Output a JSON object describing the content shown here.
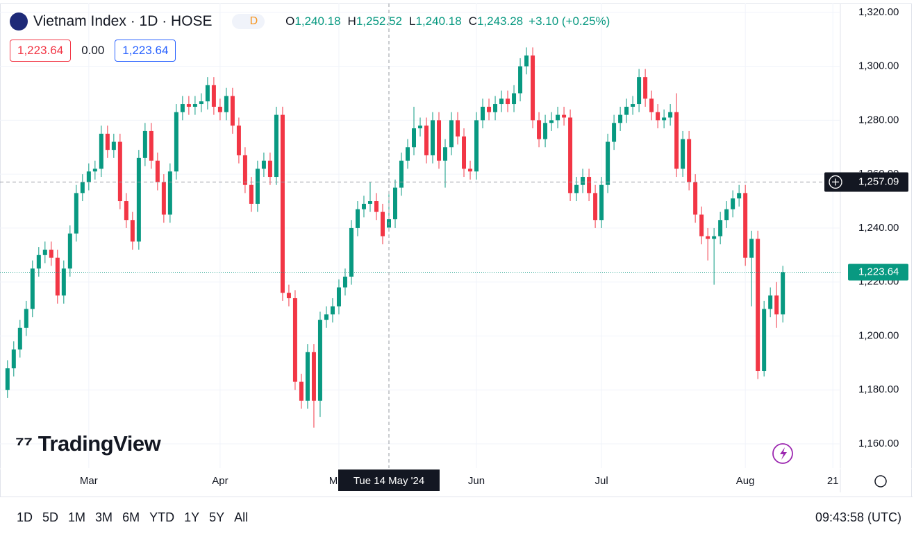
{
  "header": {
    "title": "Vietnam Index · 1D · HOSE",
    "badge": "D",
    "ohlc": [
      {
        "key": "O",
        "value": "1,240.18"
      },
      {
        "key": "H",
        "value": "1,252.52"
      },
      {
        "key": "L",
        "value": "1,240.18"
      },
      {
        "key": "C",
        "value": "1,243.28"
      }
    ],
    "change": "+3.10 (+0.25%)",
    "inputs": [
      "1,223.64",
      "0.00",
      "1,223.64"
    ]
  },
  "watermark": "TradingView",
  "toolbar": {
    "ranges": [
      "1D",
      "5D",
      "1M",
      "3M",
      "6M",
      "YTD",
      "1Y",
      "5Y",
      "All"
    ],
    "clock": "09:43:58 (UTC)"
  },
  "chart_data": {
    "type": "candlestick",
    "up_color": "#089981",
    "down_color": "#f23645",
    "grid": true,
    "ylim": [
      1151,
      1323.3
    ],
    "yticks": [
      {
        "value": 1160,
        "label": "1,160.00"
      },
      {
        "value": 1180,
        "label": "1,180.00"
      },
      {
        "value": 1200,
        "label": "1,200.00"
      },
      {
        "value": 1220,
        "label": "1,220.00"
      },
      {
        "value": 1240,
        "label": "1,240.00"
      },
      {
        "value": 1260,
        "label": "1,260.00"
      },
      {
        "value": 1280,
        "label": "1,280.00"
      },
      {
        "value": 1300,
        "label": "1,300.00"
      },
      {
        "value": 1320,
        "label": "1,320.00"
      }
    ],
    "xlim": [
      -1.2,
      133.2
    ],
    "xticks": [
      {
        "value": 13,
        "label": "Mar"
      },
      {
        "value": 34,
        "label": "Apr"
      },
      {
        "value": 53,
        "label": "May"
      },
      {
        "value": 75,
        "label": "Jun"
      },
      {
        "value": 95,
        "label": "Jul"
      },
      {
        "value": 118,
        "label": "Aug"
      },
      {
        "value": 132,
        "label": "21"
      }
    ],
    "crosshair": {
      "value": 1257.09,
      "label": "1,257.09",
      "date_label": "Tue 14 May '24"
    },
    "last_price_label": "1,223.64",
    "open": [
      1180,
      1188,
      1195,
      1203,
      1210,
      1225,
      1230,
      1232,
      1229,
      1215,
      1225,
      1238,
      1253,
      1257,
      1261,
      1262,
      1275,
      1269,
      1272,
      1250,
      1243,
      1235,
      1266,
      1276,
      1265,
      1257,
      1245,
      1261,
      1283,
      1286,
      1285,
      1286,
      1287,
      1293,
      1285,
      1283,
      1289,
      1278,
      1267,
      1256,
      1249,
      1262,
      1265,
      1259,
      1282,
      1216,
      1214,
      1183,
      1176,
      1194,
      1176,
      1206,
      1208,
      1211,
      1218,
      1222,
      1240,
      1247,
      1249,
      1250,
      1246,
      1240.18,
      1243.28,
      1255,
      1265,
      1270,
      1277,
      1278,
      1267,
      1280,
      1265,
      1270,
      1280,
      1274,
      1262,
      1261,
      1280,
      1285,
      1283,
      1286,
      1288,
      1286,
      1290,
      1300,
      1304,
      1280,
      1273,
      1279,
      1280,
      1282,
      1281,
      1253,
      1256,
      1259,
      1253,
      1243,
      1256,
      1272,
      1279,
      1282,
      1285,
      1286,
      1296,
      1288,
      1283,
      1280,
      1281,
      1283,
      1262,
      1273,
      1257,
      1245,
      1237,
      1236,
      1237,
      1243,
      1247,
      1251,
      1253,
      1229,
      1236,
      1187,
      1210,
      1215,
      1208
    ],
    "high": [
      1191,
      1198,
      1206,
      1213,
      1228,
      1233,
      1235,
      1235,
      1232,
      1228,
      1241,
      1256,
      1260,
      1264,
      1265,
      1278,
      1278,
      1275,
      1275,
      1253,
      1246,
      1269,
      1279,
      1279,
      1268,
      1260,
      1264,
      1286,
      1289,
      1289,
      1289,
      1290,
      1296,
      1296,
      1288,
      1292,
      1292,
      1281,
      1270,
      1259,
      1265,
      1268,
      1268,
      1285,
      1285,
      1219,
      1217,
      1186,
      1197,
      1197,
      1209,
      1211,
      1214,
      1221,
      1225,
      1243,
      1250,
      1252,
      1257,
      1253,
      1249,
      1252.52,
      1258,
      1268,
      1273,
      1285,
      1281,
      1281,
      1283,
      1283,
      1273,
      1283,
      1283,
      1277,
      1265,
      1283,
      1288,
      1288,
      1289,
      1291,
      1291,
      1293,
      1303,
      1307,
      1307,
      1283,
      1282,
      1283,
      1285,
      1285,
      1284,
      1259,
      1262,
      1262,
      1256,
      1259,
      1275,
      1282,
      1285,
      1288,
      1289,
      1299,
      1299,
      1291,
      1286,
      1284,
      1286,
      1290,
      1276,
      1276,
      1260,
      1248,
      1240,
      1240,
      1246,
      1250,
      1254,
      1256,
      1256,
      1239,
      1239,
      1213,
      1218,
      1220,
      1226
    ],
    "low": [
      1177,
      1185,
      1192,
      1200,
      1207,
      1222,
      1227,
      1226,
      1212,
      1212,
      1222,
      1235,
      1250,
      1254,
      1258,
      1259,
      1266,
      1266,
      1247,
      1240,
      1232,
      1232,
      1263,
      1262,
      1254,
      1242,
      1242,
      1258,
      1280,
      1282,
      1282,
      1283,
      1284,
      1282,
      1280,
      1280,
      1275,
      1264,
      1253,
      1246,
      1246,
      1259,
      1256,
      1256,
      1213,
      1211,
      1180,
      1173,
      1173,
      1166,
      1170,
      1203,
      1205,
      1208,
      1215,
      1219,
      1237,
      1244,
      1246,
      1243,
      1234,
      1240.18,
      1240,
      1252,
      1262,
      1267,
      1274,
      1264,
      1264,
      1262,
      1255,
      1267,
      1271,
      1259,
      1258,
      1258,
      1277,
      1280,
      1280,
      1283,
      1283,
      1283,
      1287,
      1297,
      1277,
      1270,
      1270,
      1276,
      1277,
      1278,
      1250,
      1250,
      1253,
      1250,
      1240,
      1240,
      1253,
      1269,
      1276,
      1279,
      1282,
      1283,
      1285,
      1280,
      1277,
      1277,
      1278,
      1259,
      1259,
      1254,
      1242,
      1234,
      1228,
      1219,
      1234,
      1240,
      1244,
      1248,
      1226,
      1211,
      1184,
      1185,
      1207,
      1203,
      1205
    ],
    "close": [
      1188,
      1195,
      1203,
      1210,
      1225,
      1230,
      1232,
      1229,
      1215,
      1225,
      1238,
      1253,
      1257,
      1261,
      1262,
      1275,
      1269,
      1272,
      1250,
      1243,
      1235,
      1266,
      1276,
      1265,
      1257,
      1245,
      1261,
      1283,
      1286,
      1285,
      1286,
      1287,
      1293,
      1285,
      1283,
      1289,
      1278,
      1267,
      1256,
      1249,
      1262,
      1265,
      1259,
      1282,
      1216,
      1214,
      1183,
      1176,
      1194,
      1176,
      1206,
      1208,
      1211,
      1218,
      1222,
      1240,
      1247,
      1249,
      1250,
      1246,
      1237,
      1243.28,
      1255,
      1265,
      1270,
      1277,
      1278,
      1267,
      1280,
      1265,
      1270,
      1280,
      1274,
      1262,
      1261,
      1280,
      1285,
      1283,
      1286,
      1288,
      1286,
      1290,
      1300,
      1304,
      1280,
      1273,
      1279,
      1280,
      1282,
      1281,
      1253,
      1256,
      1259,
      1253,
      1243,
      1256,
      1272,
      1279,
      1282,
      1285,
      1286,
      1296,
      1288,
      1283,
      1280,
      1281,
      1283,
      1262,
      1273,
      1257,
      1245,
      1237,
      1236,
      1237,
      1243,
      1247,
      1251,
      1253,
      1229,
      1236,
      1187,
      1210,
      1215,
      1208,
      1223.64
    ]
  }
}
